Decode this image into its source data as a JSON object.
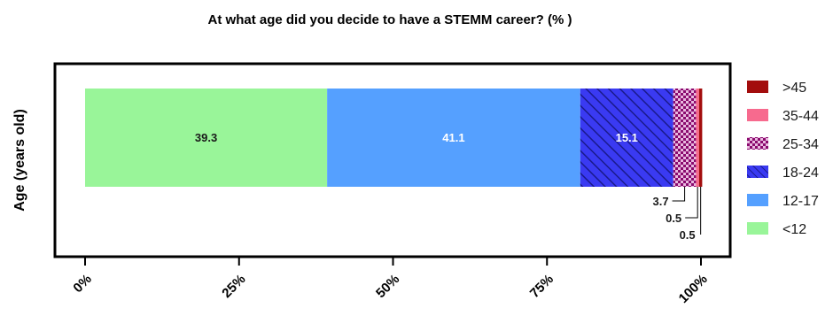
{
  "chart_data": {
    "type": "bar",
    "orientation": "horizontal",
    "stacked": true,
    "title": "At what age did you decide to have a STEMM career? (% )",
    "ylabel": "Age (years old)",
    "xlim": [
      0,
      100
    ],
    "x_ticks": [
      "0%",
      "25%",
      "50%",
      "75%",
      "100%"
    ],
    "grid": false,
    "legend_position": "right",
    "series": [
      {
        "name": "<12",
        "value": 39.3,
        "label": "39.3",
        "color": "#99f599",
        "pattern": "solid"
      },
      {
        "name": "12-17",
        "value": 41.1,
        "label": "41.1",
        "color": "#55a0ff",
        "pattern": "solid"
      },
      {
        "name": "18-24",
        "value": 15.1,
        "label": "15.1",
        "color": "#2a2ad6",
        "pattern": "hatch"
      },
      {
        "name": "25-34",
        "value": 3.7,
        "label": "3.7",
        "color": "#8a0a6e",
        "pattern": "checker"
      },
      {
        "name": "35-44",
        "value": 0.5,
        "label": "0.5",
        "color": "#f76a8e",
        "pattern": "solid"
      },
      {
        "name": ">45",
        "value": 0.5,
        "label": "0.5",
        "color": "#a30d0d",
        "pattern": "solid"
      }
    ],
    "legend_order": [
      ">45",
      "35-44",
      "25-34",
      "18-24",
      "12-17",
      "<12"
    ]
  }
}
